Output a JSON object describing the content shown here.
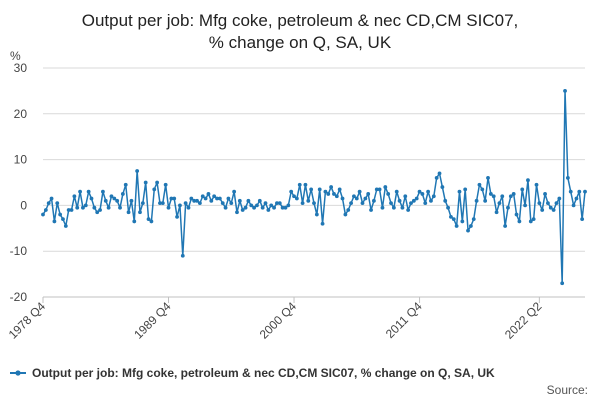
{
  "chart_data": {
    "type": "line",
    "title_lines": [
      "Output per job: Mfg coke, petroleum & nec CD,CM SIC07,",
      "% change on Q, SA, UK"
    ],
    "ylabel": "%",
    "ylim": [
      -20,
      30
    ],
    "yticks": [
      -20,
      -10,
      0,
      10,
      20,
      30
    ],
    "x_tick_labels": [
      "1978 Q4",
      "1989 Q4",
      "2000 Q4",
      "2011 Q4",
      "2022 Q2"
    ],
    "x_tick_positions": [
      0,
      44,
      88,
      132,
      174
    ],
    "grid": true,
    "legend_position": "bottom",
    "source_label": "Source:",
    "colors": {
      "series": "#2077b4",
      "grid": "#d9d9d9"
    },
    "series": [
      {
        "name": "Output per job: Mfg coke, petroleum & nec CD,CM SIC07, % change on Q, SA, UK",
        "values": [
          -2.0,
          -1.0,
          0.5,
          1.5,
          -3.5,
          0.5,
          -2.0,
          -3.0,
          -4.5,
          -1.0,
          -1.0,
          2.0,
          -0.5,
          3.0,
          -0.5,
          0.0,
          3.0,
          1.5,
          -0.5,
          -1.5,
          -1.0,
          3.0,
          1.0,
          -0.5,
          2.0,
          1.5,
          1.0,
          -0.5,
          2.5,
          4.5,
          -1.5,
          1.0,
          -3.5,
          7.5,
          -1.5,
          0.5,
          5.0,
          -3.0,
          -3.5,
          3.5,
          5.0,
          0.5,
          0.5,
          4.5,
          -0.5,
          1.5,
          1.5,
          -2.5,
          0.0,
          -11.0,
          0.5,
          -0.5,
          1.5,
          1.0,
          1.0,
          0.5,
          2.0,
          1.5,
          2.5,
          1.0,
          2.0,
          1.5,
          1.5,
          0.5,
          -0.5,
          1.5,
          0.5,
          3.0,
          -1.5,
          1.0,
          -1.0,
          -0.5,
          1.0,
          0.0,
          -0.5,
          0.0,
          1.0,
          -0.5,
          0.5,
          -1.0,
          0.0,
          -0.5,
          0.5,
          0.5,
          -0.5,
          -0.5,
          0.0,
          3.0,
          2.0,
          1.5,
          4.5,
          0.5,
          4.5,
          1.0,
          3.5,
          0.5,
          -2.0,
          3.5,
          -4.0,
          3.0,
          2.5,
          4.0,
          2.5,
          2.0,
          3.5,
          1.5,
          -2.0,
          -1.0,
          0.5,
          2.0,
          1.5,
          3.0,
          0.5,
          1.5,
          2.5,
          -1.0,
          1.0,
          3.5,
          3.5,
          -0.5,
          4.0,
          2.5,
          0.5,
          -0.5,
          3.0,
          1.0,
          -0.5,
          2.0,
          -1.0,
          0.5,
          1.0,
          1.5,
          3.0,
          2.5,
          0.5,
          3.0,
          1.0,
          2.0,
          6.0,
          7.0,
          4.0,
          1.0,
          -0.5,
          -2.5,
          -3.0,
          -4.5,
          3.0,
          -3.5,
          3.5,
          -5.5,
          -4.5,
          -3.0,
          1.0,
          4.5,
          3.5,
          1.0,
          6.0,
          2.5,
          2.0,
          -1.5,
          0.5,
          2.0,
          -4.5,
          -0.5,
          2.0,
          2.5,
          -2.0,
          -3.5,
          3.5,
          0.0,
          5.5,
          -3.5,
          -3.0,
          4.5,
          0.5,
          -1.0,
          2.5,
          0.5,
          -0.5,
          -1.0,
          0.5,
          1.5,
          -17.0,
          25.0,
          6.0,
          3.0,
          0.0,
          1.5,
          3.0,
          -3.0,
          3.0
        ]
      }
    ]
  }
}
